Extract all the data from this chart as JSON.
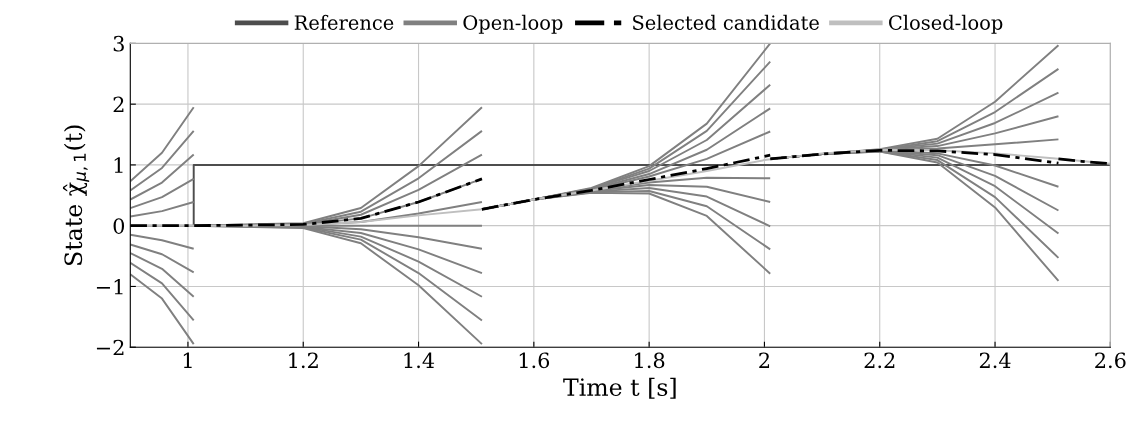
{
  "chart_data": {
    "type": "line",
    "xlabel": "Time t [s]",
    "ylabel": "State χ̂$_{μ,1}$(t)",
    "xlim": [
      0.9,
      2.6
    ],
    "xticks": [
      1,
      1.2,
      1.4,
      1.6,
      1.8,
      2,
      2.2,
      2.4,
      2.6
    ],
    "ylim": [
      -2,
      3
    ],
    "yticks": [
      {
        "value": -2,
        "label": "−2"
      },
      {
        "value": -1,
        "label": "−1"
      },
      0,
      1,
      2,
      3
    ],
    "grid": true,
    "legend": "top",
    "line_style": "solid",
    "series": [
      {
        "name": "Reference",
        "color": "#4d4d4d",
        "x": [
          0.9,
          1.01,
          1.01,
          2.6
        ],
        "values": [
          0,
          0,
          1,
          1
        ]
      },
      {
        "name": "Open-loop",
        "color": "#808080",
        "x": [
          0.9,
          0.955,
          1.01
        ],
        "values": [
          0.73,
          1.2,
          1.95
        ]
      },
      {
        "color": "#808080",
        "x": [
          0.9,
          0.955,
          1.01
        ],
        "values": [
          0.58,
          0.95,
          1.56
        ]
      },
      {
        "color": "#808080",
        "x": [
          0.9,
          0.955,
          1.01
        ],
        "values": [
          0.43,
          0.71,
          1.17
        ]
      },
      {
        "color": "#808080",
        "x": [
          0.9,
          0.955,
          1.01
        ],
        "values": [
          0.29,
          0.47,
          0.77
        ]
      },
      {
        "color": "#808080",
        "x": [
          0.9,
          0.955,
          1.01
        ],
        "values": [
          0.15,
          0.24,
          0.39
        ]
      },
      {
        "color": "#808080",
        "x": [
          0.9,
          0.955,
          1.01
        ],
        "values": [
          -0.15,
          -0.24,
          -0.38
        ]
      },
      {
        "color": "#808080",
        "x": [
          0.9,
          0.955,
          1.01
        ],
        "values": [
          -0.31,
          -0.47,
          -0.77
        ]
      },
      {
        "color": "#808080",
        "x": [
          0.9,
          0.955,
          1.01
        ],
        "values": [
          -0.45,
          -0.71,
          -1.17
        ]
      },
      {
        "color": "#808080",
        "x": [
          0.9,
          0.955,
          1.01
        ],
        "values": [
          -0.61,
          -0.95,
          -1.56
        ]
      },
      {
        "color": "#808080",
        "x": [
          0.9,
          0.955,
          1.01
        ],
        "values": [
          -0.8,
          -1.2,
          -1.95
        ]
      },
      {
        "color": "#808080",
        "x": [
          1.01,
          1.2,
          1.3,
          1.4,
          1.51
        ],
        "values": [
          0,
          0.04,
          0.29,
          0.98,
          1.95
        ]
      },
      {
        "color": "#808080",
        "x": [
          1.01,
          1.2,
          1.3,
          1.4,
          1.51
        ],
        "values": [
          0,
          0.03,
          0.23,
          0.78,
          1.56
        ]
      },
      {
        "color": "#808080",
        "x": [
          1.01,
          1.2,
          1.3,
          1.4,
          1.51
        ],
        "values": [
          0,
          0.02,
          0.18,
          0.59,
          1.17
        ]
      },
      {
        "color": "#808080",
        "x": [
          1.01,
          1.2,
          1.3,
          1.4,
          1.51
        ],
        "values": [
          0,
          0.02,
          0.12,
          0.39,
          0.77
        ]
      },
      {
        "color": "#808080",
        "x": [
          1.01,
          1.2,
          1.3,
          1.4,
          1.51
        ],
        "values": [
          0,
          0.01,
          0.06,
          0.2,
          0.39
        ]
      },
      {
        "color": "#808080",
        "x": [
          1.01,
          1.2,
          1.3,
          1.4,
          1.51
        ],
        "values": [
          0,
          0,
          0,
          0,
          0
        ]
      },
      {
        "color": "#808080",
        "x": [
          1.01,
          1.2,
          1.3,
          1.4,
          1.51
        ],
        "values": [
          0,
          -0.01,
          -0.06,
          -0.19,
          -0.38
        ]
      },
      {
        "color": "#808080",
        "x": [
          1.01,
          1.2,
          1.3,
          1.4,
          1.51
        ],
        "values": [
          0,
          -0.02,
          -0.12,
          -0.39,
          -0.78
        ]
      },
      {
        "color": "#808080",
        "x": [
          1.01,
          1.2,
          1.3,
          1.4,
          1.51
        ],
        "values": [
          0,
          -0.02,
          -0.18,
          -0.59,
          -1.17
        ]
      },
      {
        "color": "#808080",
        "x": [
          1.01,
          1.2,
          1.3,
          1.4,
          1.51
        ],
        "values": [
          0,
          -0.03,
          -0.23,
          -0.78,
          -1.56
        ]
      },
      {
        "color": "#808080",
        "x": [
          1.01,
          1.2,
          1.3,
          1.4,
          1.51
        ],
        "values": [
          0,
          -0.04,
          -0.29,
          -0.98,
          -1.95
        ]
      },
      {
        "color": "#808080",
        "x": [
          1.51,
          1.6,
          1.7,
          1.8,
          1.9,
          2.01
        ],
        "values": [
          0.27,
          0.43,
          0.62,
          0.98,
          1.68,
          3.0
        ]
      },
      {
        "color": "#808080",
        "x": [
          1.51,
          1.6,
          1.7,
          1.8,
          1.9,
          2.01
        ],
        "values": [
          0.27,
          0.43,
          0.61,
          0.94,
          1.56,
          2.7
        ]
      },
      {
        "color": "#808080",
        "x": [
          1.51,
          1.6,
          1.7,
          1.8,
          1.9,
          2.01
        ],
        "values": [
          0.27,
          0.43,
          0.61,
          0.9,
          1.41,
          2.32
        ]
      },
      {
        "color": "#808080",
        "x": [
          1.51,
          1.6,
          1.7,
          1.8,
          1.9,
          2.01
        ],
        "values": [
          0.27,
          0.43,
          0.6,
          0.85,
          1.25,
          1.93
        ]
      },
      {
        "color": "#808080",
        "x": [
          1.51,
          1.6,
          1.7,
          1.8,
          1.9,
          2.01
        ],
        "values": [
          0.27,
          0.43,
          0.59,
          0.81,
          1.1,
          1.55
        ]
      },
      {
        "color": "#808080",
        "x": [
          1.51,
          1.6,
          1.7,
          1.8,
          1.9,
          2.01
        ],
        "values": [
          0.27,
          0.43,
          0.58,
          0.71,
          0.79,
          0.78
        ]
      },
      {
        "color": "#808080",
        "x": [
          1.51,
          1.6,
          1.7,
          1.8,
          1.9,
          2.01
        ],
        "values": [
          0.27,
          0.43,
          0.57,
          0.67,
          0.64,
          0.39
        ]
      },
      {
        "color": "#808080",
        "x": [
          1.51,
          1.6,
          1.7,
          1.8,
          1.9,
          2.01
        ],
        "values": [
          0.27,
          0.43,
          0.56,
          0.62,
          0.48,
          -0.01
        ]
      },
      {
        "color": "#808080",
        "x": [
          1.51,
          1.6,
          1.7,
          1.8,
          1.9,
          2.01
        ],
        "values": [
          0.27,
          0.43,
          0.55,
          0.57,
          0.32,
          -0.39
        ]
      },
      {
        "color": "#808080",
        "x": [
          1.51,
          1.6,
          1.7,
          1.8,
          1.9,
          2.01
        ],
        "values": [
          0.27,
          0.43,
          0.54,
          0.53,
          0.16,
          -0.79
        ]
      },
      {
        "color": "#808080",
        "x": [
          2.01,
          2.1,
          2.2,
          2.3,
          2.4,
          2.51
        ],
        "values": [
          1.1,
          1.18,
          1.26,
          1.43,
          2.04,
          2.97
        ]
      },
      {
        "color": "#808080",
        "x": [
          2.01,
          2.1,
          2.2,
          2.3,
          2.4,
          2.51
        ],
        "values": [
          1.1,
          1.18,
          1.25,
          1.39,
          1.87,
          2.58
        ]
      },
      {
        "color": "#808080",
        "x": [
          2.01,
          2.1,
          2.2,
          2.3,
          2.4,
          2.51
        ],
        "values": [
          1.1,
          1.18,
          1.25,
          1.35,
          1.69,
          2.19
        ]
      },
      {
        "color": "#808080",
        "x": [
          2.01,
          2.1,
          2.2,
          2.3,
          2.4,
          2.51
        ],
        "values": [
          1.1,
          1.18,
          1.25,
          1.31,
          1.52,
          1.8
        ]
      },
      {
        "color": "#808080",
        "x": [
          2.01,
          2.1,
          2.2,
          2.3,
          2.4,
          2.51
        ],
        "values": [
          1.1,
          1.18,
          1.24,
          1.27,
          1.34,
          1.42
        ]
      },
      {
        "color": "#808080",
        "x": [
          2.01,
          2.1,
          2.2,
          2.3,
          2.4,
          2.51
        ],
        "values": [
          1.1,
          1.18,
          1.24,
          1.19,
          0.99,
          0.64
        ]
      },
      {
        "color": "#808080",
        "x": [
          2.01,
          2.1,
          2.2,
          2.3,
          2.4,
          2.51
        ],
        "values": [
          1.1,
          1.18,
          1.23,
          1.16,
          0.82,
          0.25
        ]
      },
      {
        "color": "#808080",
        "x": [
          2.01,
          2.1,
          2.2,
          2.3,
          2.4,
          2.51
        ],
        "values": [
          1.1,
          1.18,
          1.23,
          1.12,
          0.65,
          -0.13
        ]
      },
      {
        "color": "#808080",
        "x": [
          2.01,
          2.1,
          2.2,
          2.3,
          2.4,
          2.51
        ],
        "values": [
          1.1,
          1.18,
          1.22,
          1.08,
          0.47,
          -0.53
        ]
      },
      {
        "color": "#808080",
        "x": [
          2.01,
          2.1,
          2.2,
          2.3,
          2.4,
          2.51
        ],
        "values": [
          1.1,
          1.18,
          1.22,
          1.04,
          0.3,
          -0.91
        ]
      },
      {
        "name": "Selected candidate",
        "color": "#000000",
        "line_style": "dashdot",
        "x": [
          0.9,
          1.01,
          1.2,
          1.3,
          1.4,
          1.51
        ],
        "values": [
          0,
          0,
          0.02,
          0.12,
          0.39,
          0.77
        ]
      },
      {
        "color": "#000000",
        "line_style": "dashdot",
        "x": [
          1.51,
          1.6,
          1.7,
          1.8,
          1.9,
          2.01
        ],
        "values": [
          0.27,
          0.43,
          0.58,
          0.76,
          0.94,
          1.16
        ]
      },
      {
        "color": "#000000",
        "line_style": "dashdot",
        "x": [
          2.01,
          2.1,
          2.2,
          2.3,
          2.4,
          2.51
        ],
        "values": [
          1.1,
          1.18,
          1.24,
          1.23,
          1.17,
          1.03
        ]
      },
      {
        "color": "#000000",
        "line_style": "dashdot",
        "x": [
          2.51,
          2.55,
          2.6
        ],
        "values": [
          1.1,
          1.06,
          1.02
        ]
      },
      {
        "name": "Closed-loop",
        "color": "#bfbfbf",
        "x": [
          0.9,
          1.0,
          1.1,
          1.2,
          1.3,
          1.4,
          1.51,
          1.6,
          1.7,
          1.8,
          1.9,
          2.0,
          2.1,
          2.2,
          2.3,
          2.4,
          2.5,
          2.6
        ],
        "values": [
          0,
          0,
          0,
          0.01,
          0.06,
          0.17,
          0.27,
          0.43,
          0.58,
          0.74,
          0.9,
          1.08,
          1.19,
          1.25,
          1.24,
          1.19,
          1.11,
          1.02
        ]
      }
    ]
  }
}
